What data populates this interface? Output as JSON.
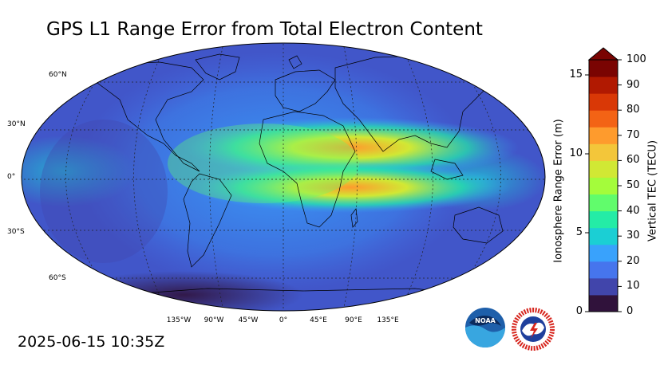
{
  "title": "GPS L1 Range Error from Total Electron Content",
  "timestamp": "2025-06-15 10:35Z",
  "map": {
    "lat_labels": [
      "60°N",
      "30°N",
      "0°",
      "30°S",
      "60°S"
    ],
    "lon_labels": [
      "135°W",
      "90°W",
      "45°W",
      "0°",
      "45°E",
      "90°E",
      "135°E"
    ]
  },
  "colorbar": {
    "left_title": "Ionosphere Range Error (m)",
    "right_title": "Vertical TEC (TECU)",
    "left_ticks": [
      "0",
      "5",
      "10",
      "15"
    ],
    "right_ticks": [
      "0",
      "10",
      "20",
      "30",
      "40",
      "50",
      "60",
      "70",
      "80",
      "90",
      "100"
    ],
    "colors": [
      "#30123b",
      "#4145ab",
      "#4675ed",
      "#39a2fc",
      "#1bcfd4",
      "#24eca6",
      "#61fc6c",
      "#a4fc3b",
      "#d1e834",
      "#f3c63a",
      "#fe9b2d",
      "#f36315",
      "#d93806",
      "#b11901",
      "#7a0402"
    ]
  },
  "logos": {
    "noaa_text": "NOAA",
    "nws_text": "NATIONAL WEATHER SERVICE"
  }
}
